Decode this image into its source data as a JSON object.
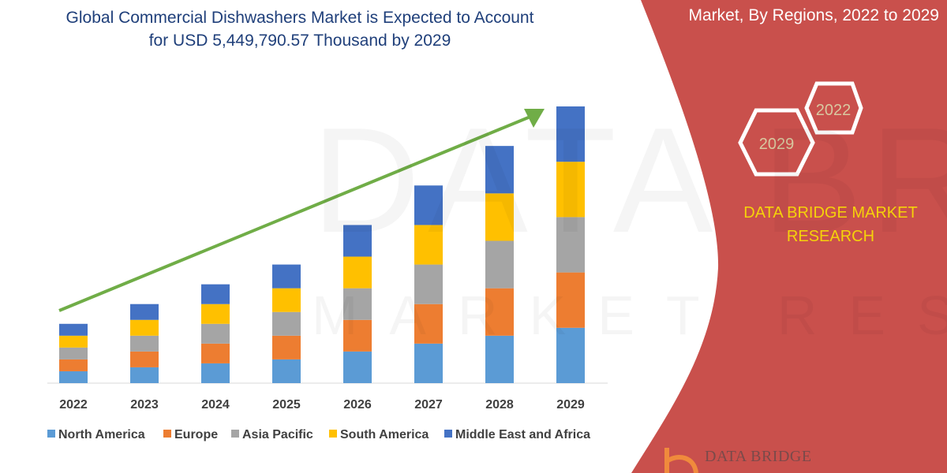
{
  "header": {
    "title_line1": "Global Commercial Dishwashers Market is Expected to Account",
    "title_line2": "for USD 5,449,790.57 Thousand by 2029",
    "subtitle": "Market, By Regions, 2022 to 2029"
  },
  "badges": {
    "hex_start": "2022",
    "hex_end": "2029"
  },
  "brand": {
    "line1": "DATA BRIDGE MARKET",
    "line2": "RESEARCH",
    "logo_text": "DATA BRIDGE",
    "watermark": "DATA BRIDGE",
    "watermark2": "MARKET RESEARCH"
  },
  "colors": {
    "panel": "#C9504C",
    "arrow": "#70AD47",
    "brand_text": "#F5D20A"
  },
  "chart_data": {
    "type": "bar",
    "stacked": true,
    "categories": [
      "2022",
      "2023",
      "2024",
      "2025",
      "2026",
      "2027",
      "2028",
      "2029"
    ],
    "series": [
      {
        "name": "North America",
        "color": "#5B9BD5",
        "values": [
          15,
          20,
          25,
          30,
          40,
          50,
          60,
          70
        ]
      },
      {
        "name": "Europe",
        "color": "#ED7D31",
        "values": [
          15,
          20,
          25,
          30,
          40,
          50,
          60,
          70
        ]
      },
      {
        "name": "Asia Pacific",
        "color": "#A5A5A5",
        "values": [
          15,
          20,
          25,
          30,
          40,
          50,
          60,
          70
        ]
      },
      {
        "name": "South America",
        "color": "#FFC000",
        "values": [
          15,
          20,
          25,
          30,
          40,
          50,
          60,
          70
        ]
      },
      {
        "name": "Middle East and Africa",
        "color": "#4472C4",
        "values": [
          15,
          20,
          25,
          30,
          40,
          50,
          60,
          70
        ]
      }
    ],
    "ylim": [
      0,
      350
    ],
    "grid": false,
    "legend": "bottom",
    "trend_arrow": true
  }
}
